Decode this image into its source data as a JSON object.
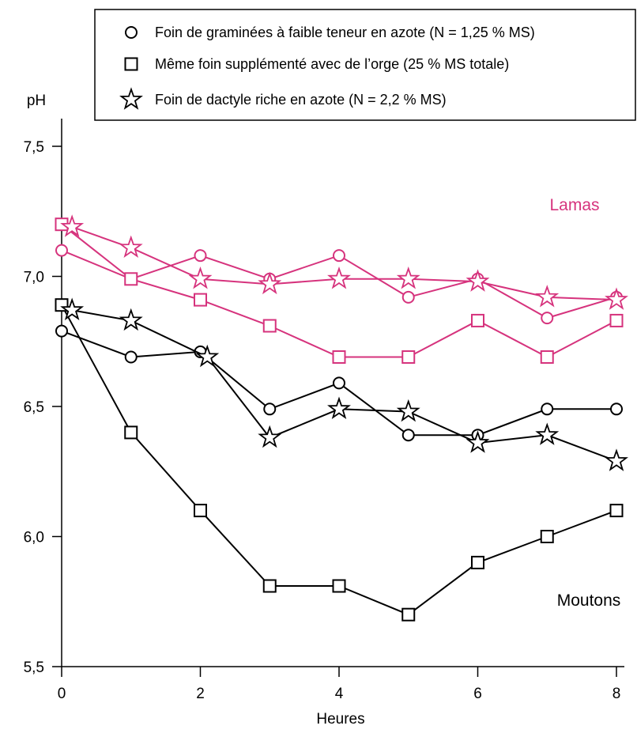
{
  "chart_data": {
    "type": "line",
    "ylabel": "pH",
    "xlabel": "Heures",
    "xlim": [
      0,
      8
    ],
    "ylim": [
      5.5,
      7.5
    ],
    "x_ticks": [
      0,
      2,
      4,
      6,
      8
    ],
    "y_ticks": [
      5.5,
      6.0,
      6.5,
      7.0,
      7.5
    ],
    "x_tick_labels": [
      "0",
      "2",
      "4",
      "6",
      "8"
    ],
    "y_tick_labels": [
      "5,5",
      "6,0",
      "6,5",
      "7,0",
      "7,5"
    ],
    "grid": false,
    "legend_position": "top-right",
    "legend": [
      {
        "marker": "circle",
        "label": "Foin de graminées à faible teneur en azote (N = 1,25 % MS)"
      },
      {
        "marker": "square",
        "label": "Même foin supplémenté avec de l’orge (25 % MS totale)"
      },
      {
        "marker": "star",
        "label": "Foin de dactyle riche en azote (N = 2,2 % MS)"
      }
    ],
    "annotations": [
      {
        "text": "Lamas",
        "color": "#d6337d"
      },
      {
        "text": "Moutons",
        "color": "#000000"
      }
    ],
    "colors": {
      "lamas": "#d6337d",
      "moutons": "#000000"
    },
    "series": [
      {
        "group": "lamas",
        "marker": "circle",
        "x": [
          0,
          1,
          2,
          3,
          4,
          5,
          6,
          7,
          8
        ],
        "y": [
          7.1,
          6.99,
          7.08,
          6.99,
          7.08,
          6.92,
          6.99,
          6.84,
          6.92
        ]
      },
      {
        "group": "lamas",
        "marker": "square",
        "x": [
          0,
          1,
          2,
          3,
          4,
          5,
          6,
          7,
          8
        ],
        "y": [
          7.2,
          6.99,
          6.91,
          6.81,
          6.69,
          6.69,
          6.83,
          6.69,
          6.83
        ]
      },
      {
        "group": "lamas",
        "marker": "star",
        "x": [
          0.15,
          1,
          2,
          3,
          4,
          5,
          6,
          7,
          8
        ],
        "y": [
          7.19,
          7.11,
          6.99,
          6.97,
          6.99,
          6.99,
          6.98,
          6.92,
          6.91
        ]
      },
      {
        "group": "moutons",
        "marker": "circle",
        "x": [
          0,
          1,
          2,
          3,
          4,
          5,
          6,
          7,
          8
        ],
        "y": [
          6.79,
          6.69,
          6.71,
          6.49,
          6.59,
          6.39,
          6.39,
          6.49,
          6.49
        ]
      },
      {
        "group": "moutons",
        "marker": "square",
        "x": [
          0,
          1,
          2,
          3,
          4,
          5,
          6,
          7,
          8
        ],
        "y": [
          6.89,
          6.4,
          6.1,
          5.81,
          5.81,
          5.7,
          5.9,
          6.0,
          6.1
        ]
      },
      {
        "group": "moutons",
        "marker": "star",
        "x": [
          0.15,
          1,
          2.1,
          3,
          4,
          5,
          6,
          7,
          8
        ],
        "y": [
          6.87,
          6.83,
          6.69,
          6.38,
          6.49,
          6.48,
          6.36,
          6.39,
          6.29
        ]
      }
    ]
  }
}
